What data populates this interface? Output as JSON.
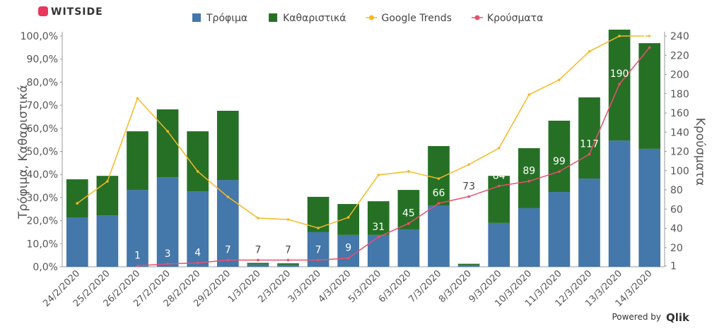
{
  "brand": "WITSIDE",
  "powered_by": "Powered by",
  "powered_brand": "Qlik",
  "chart_data": {
    "type": "bar-line",
    "categories": [
      "24/2/2020",
      "25/2/2020",
      "26/2/2020",
      "27/2/2020",
      "28/2/2020",
      "29/2/2020",
      "1/3/2020",
      "2/3/2020",
      "3/3/2020",
      "4/3/2020",
      "5/3/2020",
      "6/3/2020",
      "7/3/2020",
      "8/3/2020",
      "9/3/2020",
      "10/3/2020",
      "11/3/2020",
      "12/3/2020",
      "13/3/2020",
      "14/3/2020"
    ],
    "ylabel": "Τρόφιμα, Καθαριστικά",
    "y2label": "Κρούσματα",
    "ylim": [
      0,
      100
    ],
    "yticks": [
      {
        "value": 0,
        "label": "0,0%"
      },
      {
        "value": 10,
        "label": "10,0%"
      },
      {
        "value": 20,
        "label": "20,0%"
      },
      {
        "value": 30,
        "label": "30,0%"
      },
      {
        "value": 40,
        "label": "40,0%"
      },
      {
        "value": 50,
        "label": "50,0%"
      },
      {
        "value": 60,
        "label": "60,0%"
      },
      {
        "value": 70,
        "label": "70,0%"
      },
      {
        "value": 80,
        "label": "80,0%"
      },
      {
        "value": 90,
        "label": "90,0%"
      },
      {
        "value": 100,
        "label": "100,0%"
      }
    ],
    "y2lim": [
      0,
      240
    ],
    "y2ticks": [
      1,
      20,
      40,
      60,
      80,
      100,
      120,
      140,
      160,
      180,
      200,
      220,
      240
    ],
    "series": [
      {
        "name": "Τρόφιμα",
        "kind": "bar",
        "color": "#4477aa",
        "values": [
          21.4,
          22.3,
          33.3,
          38.8,
          32.7,
          37.6,
          1.0,
          0.8,
          15,
          13.8,
          13.8,
          16.2,
          26.6,
          0.7,
          19,
          25.4,
          32.4,
          38.2,
          54.7,
          51.1
        ]
      },
      {
        "name": "Καθαριστικά",
        "kind": "bar",
        "color": "#267026",
        "values": [
          16.5,
          17.1,
          25.4,
          29.4,
          26,
          30,
          0.7,
          0.7,
          15.3,
          13.4,
          14.6,
          17.1,
          25.7,
          0.6,
          20.4,
          26,
          30.9,
          35.2,
          50,
          45.8
        ]
      },
      {
        "name": "Google Trends",
        "kind": "line",
        "color": "#f8b821",
        "values": [
          27.5,
          37,
          73,
          58.7,
          41.3,
          30.3,
          21.1,
          20.5,
          16.8,
          21.4,
          39.8,
          41.3,
          38.2,
          44.3,
          51.4,
          74.6,
          81,
          93.3,
          100,
          100
        ]
      },
      {
        "name": "Κρούσματα",
        "kind": "line",
        "axis": "y2",
        "color": "#e8506e",
        "labels": true,
        "values": [
          null,
          null,
          1,
          3,
          4,
          7,
          7,
          7,
          7,
          9,
          31,
          45,
          66,
          73,
          84,
          89,
          99,
          117,
          190,
          228
        ]
      }
    ]
  }
}
